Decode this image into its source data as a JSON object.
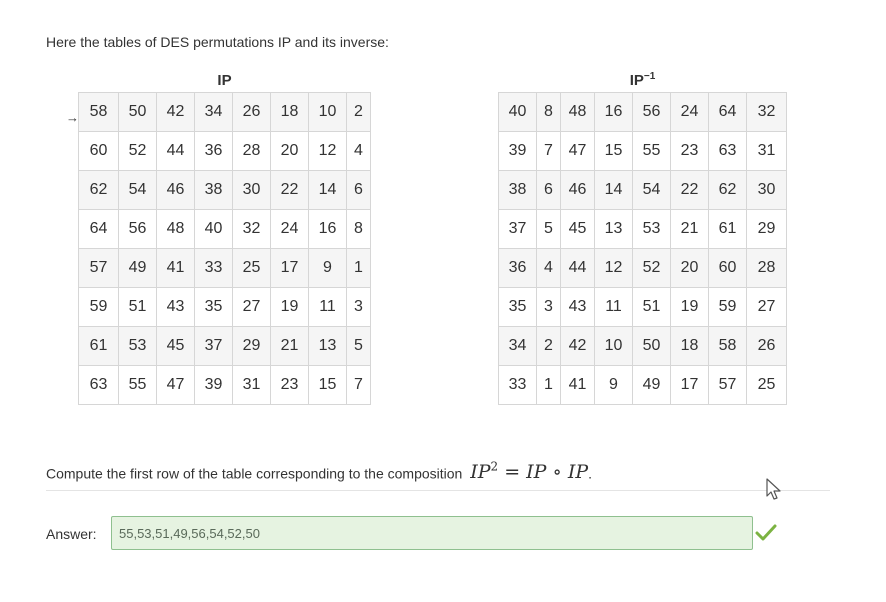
{
  "intro_text": "Here the tables of DES permutations IP and its inverse:",
  "ip_table": {
    "title": "IP",
    "rows": [
      [
        58,
        50,
        42,
        34,
        26,
        18,
        10,
        2
      ],
      [
        60,
        52,
        44,
        36,
        28,
        20,
        12,
        4
      ],
      [
        62,
        54,
        46,
        38,
        30,
        22,
        14,
        6
      ],
      [
        64,
        56,
        48,
        40,
        32,
        24,
        16,
        8
      ],
      [
        57,
        49,
        41,
        33,
        25,
        17,
        9,
        1
      ],
      [
        59,
        51,
        43,
        35,
        27,
        19,
        11,
        3
      ],
      [
        61,
        53,
        45,
        37,
        29,
        21,
        13,
        5
      ],
      [
        63,
        55,
        47,
        39,
        31,
        23,
        15,
        7
      ]
    ]
  },
  "ip_inverse_table": {
    "title": "IP",
    "title_superscript": "−1",
    "rows": [
      [
        40,
        8,
        48,
        16,
        56,
        24,
        64,
        32
      ],
      [
        39,
        7,
        47,
        15,
        55,
        23,
        63,
        31
      ],
      [
        38,
        6,
        46,
        14,
        54,
        22,
        62,
        30
      ],
      [
        37,
        5,
        45,
        13,
        53,
        21,
        61,
        29
      ],
      [
        36,
        4,
        44,
        12,
        52,
        20,
        60,
        28
      ],
      [
        35,
        3,
        43,
        11,
        51,
        19,
        59,
        27
      ],
      [
        34,
        2,
        42,
        10,
        50,
        18,
        58,
        26
      ],
      [
        33,
        1,
        41,
        9,
        49,
        17,
        57,
        25
      ]
    ]
  },
  "arrow_marker": "→",
  "question": {
    "text": "Compute the first row of the table corresponding to the composition",
    "math_lhs": "IP",
    "math_sup": "2",
    "math_rhs": " = IP ∘ IP",
    "trailing": "."
  },
  "answer": {
    "label": "Answer:",
    "value": "55,53,51,49,56,54,52,50"
  },
  "icons": {
    "cursor": "mouse-pointer-icon",
    "status": "checkmark-icon"
  },
  "colors": {
    "check": "#7cb342",
    "input_bg": "#e6f3e1",
    "input_border": "#8fc08f"
  }
}
